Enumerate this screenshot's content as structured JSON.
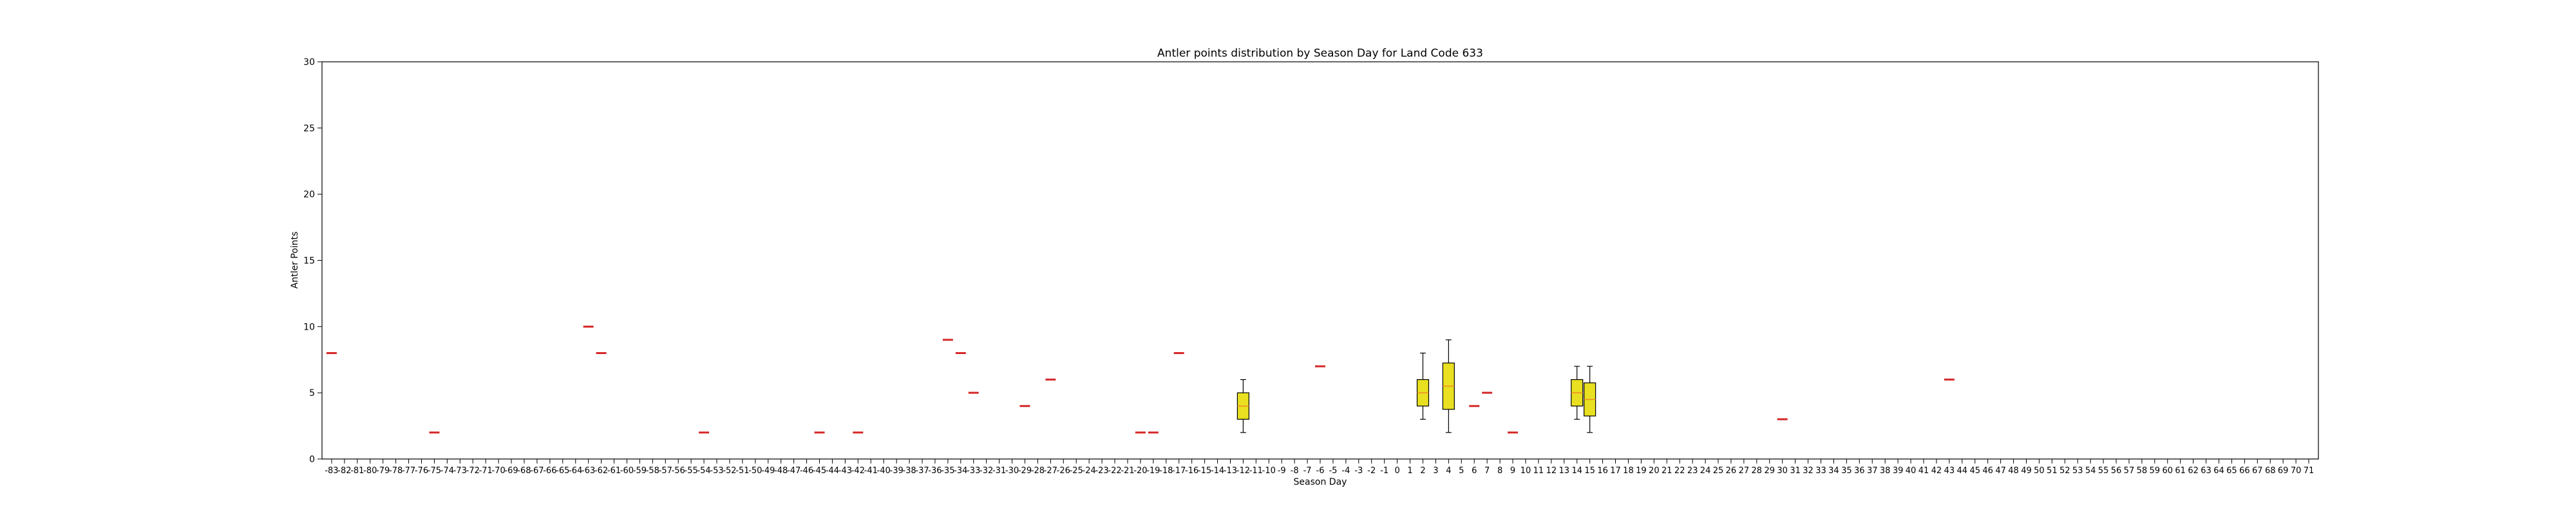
{
  "chart_data": {
    "type": "box",
    "title": "Antler points distribution by Season Day for Land Code 633",
    "xlabel": "Season Day",
    "ylabel": "Antler Points",
    "ylim": [
      0,
      30
    ],
    "yticks": [
      0,
      5,
      10,
      15,
      20,
      25,
      30
    ],
    "x_categories_range": [
      -83,
      71
    ],
    "grid": false,
    "colors": {
      "box_fill": "#e8e020",
      "median": "#f08a2a",
      "single_marker": "#d62728",
      "axis": "#000000"
    },
    "boxes": [
      {
        "day": -12,
        "whisker_low": 2,
        "q1": 3,
        "median": 4,
        "q3": 5,
        "whisker_high": 6
      },
      {
        "day": 2,
        "whisker_low": 3,
        "q1": 4,
        "median": 5,
        "q3": 6,
        "whisker_high": 8
      },
      {
        "day": 4,
        "whisker_low": 2,
        "q1": 3.75,
        "median": 5.5,
        "q3": 7.25,
        "whisker_high": 9
      },
      {
        "day": 14,
        "whisker_low": 3,
        "q1": 4,
        "median": 5,
        "q3": 6,
        "whisker_high": 7
      },
      {
        "day": 15,
        "whisker_low": 2,
        "q1": 3.25,
        "median": 4.5,
        "q3": 5.75,
        "whisker_high": 7
      }
    ],
    "single_points": [
      {
        "day": -83,
        "value": 8
      },
      {
        "day": -75,
        "value": 2
      },
      {
        "day": -63,
        "value": 10
      },
      {
        "day": -62,
        "value": 8
      },
      {
        "day": -54,
        "value": 2
      },
      {
        "day": -45,
        "value": 2
      },
      {
        "day": -42,
        "value": 2
      },
      {
        "day": -35,
        "value": 9
      },
      {
        "day": -34,
        "value": 8
      },
      {
        "day": -33,
        "value": 5
      },
      {
        "day": -29,
        "value": 4
      },
      {
        "day": -27,
        "value": 6
      },
      {
        "day": -20,
        "value": 2
      },
      {
        "day": -19,
        "value": 2
      },
      {
        "day": -17,
        "value": 8
      },
      {
        "day": -6,
        "value": 7
      },
      {
        "day": 6,
        "value": 4
      },
      {
        "day": 7,
        "value": 5
      },
      {
        "day": 9,
        "value": 2
      },
      {
        "day": 30,
        "value": 3
      },
      {
        "day": 43,
        "value": 6
      }
    ]
  }
}
